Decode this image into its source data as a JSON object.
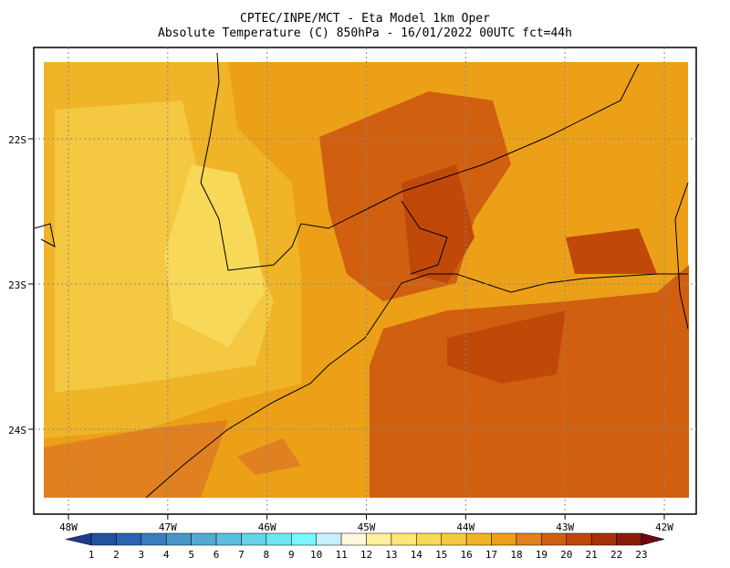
{
  "header": {
    "title": "CPTEC/INPE/MCT -  Eta Model 1km Oper",
    "subtitle": "Absolute Temperature (C) 850hPa - 16/01/2022 00UTC fct=44h"
  },
  "map": {
    "lat_labels": [
      {
        "value": -22,
        "label": "22S"
      },
      {
        "value": -23,
        "label": "23S"
      },
      {
        "value": -24,
        "label": "24S"
      }
    ],
    "lon_labels": [
      {
        "value": -48,
        "label": "48W"
      },
      {
        "value": -47,
        "label": "47W"
      },
      {
        "value": -46,
        "label": "46W"
      },
      {
        "value": -45,
        "label": "45W"
      },
      {
        "value": -44,
        "label": "44W"
      },
      {
        "value": -43,
        "label": "43W"
      },
      {
        "value": -42,
        "label": "42W"
      }
    ]
  },
  "colorbar": {
    "labels": [
      1,
      2,
      3,
      4,
      5,
      6,
      7,
      8,
      9,
      10,
      11,
      12,
      13,
      14,
      15,
      16,
      17,
      18,
      19,
      20,
      21,
      22,
      23
    ],
    "colors": [
      "#1e3c8c",
      "#2050a0",
      "#2a64b0",
      "#3a7cbe",
      "#4896c8",
      "#52aad2",
      "#5cbedc",
      "#64d2e8",
      "#6ee6f2",
      "#78f8fc",
      "#c8f0fc",
      "#fff8dc",
      "#fff0a0",
      "#fde678",
      "#f8d858",
      "#f4c840",
      "#f0b428",
      "#eca018",
      "#e08020",
      "#d06010",
      "#c04808",
      "#a83008",
      "#8c1a0a",
      "#6e0814"
    ]
  }
}
